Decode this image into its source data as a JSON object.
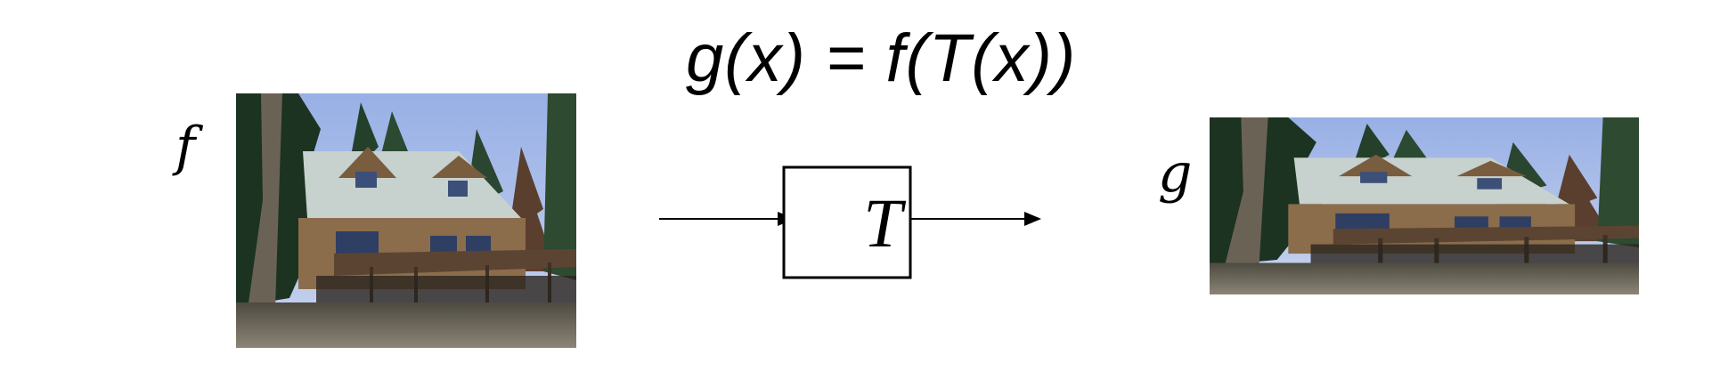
{
  "equation": "g(x) = f(T(x))",
  "input_label": "f",
  "output_label": "g",
  "transform_label": "T",
  "colors": {
    "sky": "#a9bde8",
    "trees": "#1f3b26",
    "roof": "#c8d3cf",
    "wood": "#8a6a48",
    "ground": "#6d6658"
  }
}
